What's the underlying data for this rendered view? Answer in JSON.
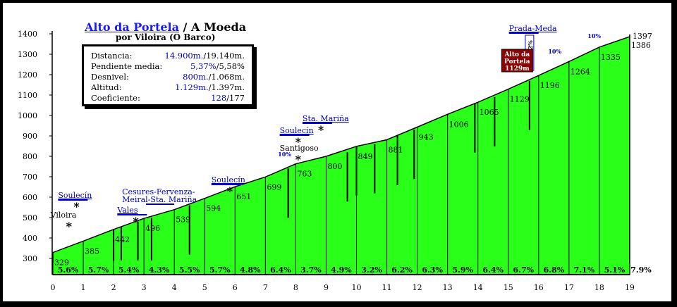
{
  "title": {
    "climb": "Alto da Portela",
    "separator": " / ",
    "destination": "A Moeda",
    "subtitle": "por Viloira (O Barco)"
  },
  "stats": [
    {
      "label": "Distancia:",
      "primary": "14.900m.",
      "secondary": "/19.140m."
    },
    {
      "label": "Pendiente media:",
      "primary": "5,37%",
      "secondary": "/5,58%"
    },
    {
      "label": "Desnivel:",
      "primary": "800m.",
      "secondary": "/1.068m."
    },
    {
      "label": "Altitud:",
      "primary": "1.129m.",
      "secondary": "/1.397m."
    },
    {
      "label": "Coeficiente:",
      "primary": "128",
      "secondary": "/177"
    }
  ],
  "chart_data": {
    "type": "area",
    "xlim": [
      0,
      19
    ],
    "ylim": [
      300,
      1400
    ],
    "x_ticks": [
      "0",
      "1",
      "2",
      "3",
      "4",
      "5",
      "6",
      "7",
      "8",
      "9",
      "10",
      "11",
      "12",
      "13",
      "14",
      "15",
      "16",
      "17",
      "18",
      "19"
    ],
    "y_ticks": [
      "300",
      "400",
      "500",
      "600",
      "700",
      "800",
      "900",
      "1000",
      "1100",
      "1200",
      "1300",
      "1400"
    ],
    "profile": [
      {
        "x": 0,
        "y": 329
      },
      {
        "x": 1,
        "y": 385
      },
      {
        "x": 2,
        "y": 442
      },
      {
        "x": 3,
        "y": 496
      },
      {
        "x": 4,
        "y": 539
      },
      {
        "x": 5,
        "y": 594
      },
      {
        "x": 6,
        "y": 651
      },
      {
        "x": 7,
        "y": 699
      },
      {
        "x": 8,
        "y": 763
      },
      {
        "x": 9,
        "y": 800
      },
      {
        "x": 10,
        "y": 849
      },
      {
        "x": 11,
        "y": 881
      },
      {
        "x": 12,
        "y": 943
      },
      {
        "x": 13,
        "y": 1006
      },
      {
        "x": 14,
        "y": 1065
      },
      {
        "x": 15,
        "y": 1129
      },
      {
        "x": 16,
        "y": 1196
      },
      {
        "x": 17,
        "y": 1264
      },
      {
        "x": 18,
        "y": 1335
      },
      {
        "x": 19,
        "y": 1386
      }
    ],
    "end_altitudes": [
      "1397",
      "1386"
    ],
    "segment_gradients": [
      "5.6%",
      "5.7%",
      "5.4%",
      "4.3%",
      "5.5%",
      "5.7%",
      "4.8%",
      "6.4%",
      "3.7%",
      "4.9%",
      "3.2%",
      "6.2%",
      "6.3%",
      "5.9%",
      "6.4%",
      "6.7%",
      "6.8%",
      "7.1%",
      "5.1%",
      "7.9%"
    ],
    "colors": {
      "fill": "#2aff1a",
      "outline": "#000000",
      "labels": "#0000cc",
      "summit_box": "#8b0000"
    }
  },
  "places": [
    {
      "name": "Viloira",
      "km": 0.2
    },
    {
      "name": "Soulecín",
      "km": 0.45
    },
    {
      "name": "Vales",
      "km": 2.4
    },
    {
      "name": "Cesures-Fervenza-Meiral-Sta. Mariña",
      "km": 3.3
    },
    {
      "name": "Soulecín",
      "km": 5.5
    },
    {
      "name": "Santigoso",
      "km": 7.75
    },
    {
      "name": "Soulecín",
      "km": 7.75
    },
    {
      "name": "Sta. Mariña",
      "km": 8.5
    },
    {
      "name": "Prada-Meda",
      "km": 15.3
    }
  ],
  "peak_labels": [
    {
      "text": "10%",
      "km": 7.6
    },
    {
      "text": "10%",
      "km": 16.5
    },
    {
      "text": "10%",
      "km": 17.8
    },
    {
      "text": "10%-12%",
      "km": 15.7
    }
  ],
  "summit_box": {
    "line1": "Alto da",
    "line2": "Portela",
    "line3": "1129m",
    "km": 15.2
  }
}
